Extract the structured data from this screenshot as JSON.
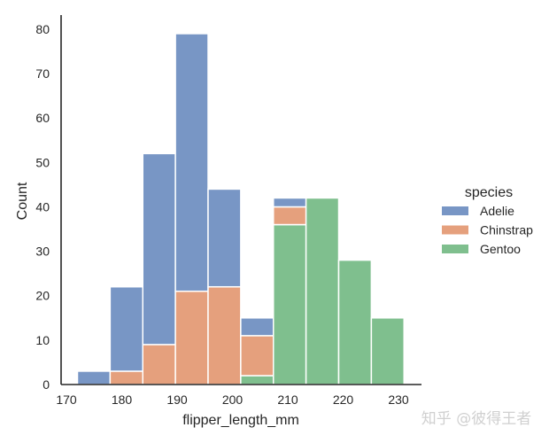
{
  "chart_data": {
    "type": "bar",
    "subtype": "stacked histogram",
    "title": "",
    "xlabel": "flipper_length_mm",
    "ylabel": "Count",
    "xlim": [
      169,
      233
    ],
    "ylim": [
      0,
      83
    ],
    "xticks": [
      170,
      180,
      190,
      200,
      210,
      220,
      230
    ],
    "yticks": [
      0,
      10,
      20,
      30,
      40,
      50,
      60,
      70,
      80
    ],
    "grid": false,
    "bin_edges": [
      172,
      177.9,
      183.8,
      189.7,
      195.6,
      201.5,
      207.4,
      213.3,
      219.2,
      225.1,
      231
    ],
    "series": [
      {
        "name": "Gentoo",
        "color": "#7fbf8e",
        "values": [
          0,
          0,
          0,
          0,
          0,
          2,
          36,
          42,
          28,
          15
        ]
      },
      {
        "name": "Chinstrap",
        "color": "#e5a07d",
        "values": [
          0,
          3,
          9,
          21,
          22,
          9,
          4,
          0,
          0,
          0
        ]
      },
      {
        "name": "Adelie",
        "color": "#7896c5",
        "values": [
          3,
          19,
          43,
          58,
          22,
          4,
          2,
          0,
          0,
          0
        ]
      }
    ],
    "legend": {
      "title": "species",
      "entries": [
        "Adelie",
        "Chinstrap",
        "Gentoo"
      ],
      "position": "right"
    }
  },
  "watermark": "知乎 @彼得王者"
}
